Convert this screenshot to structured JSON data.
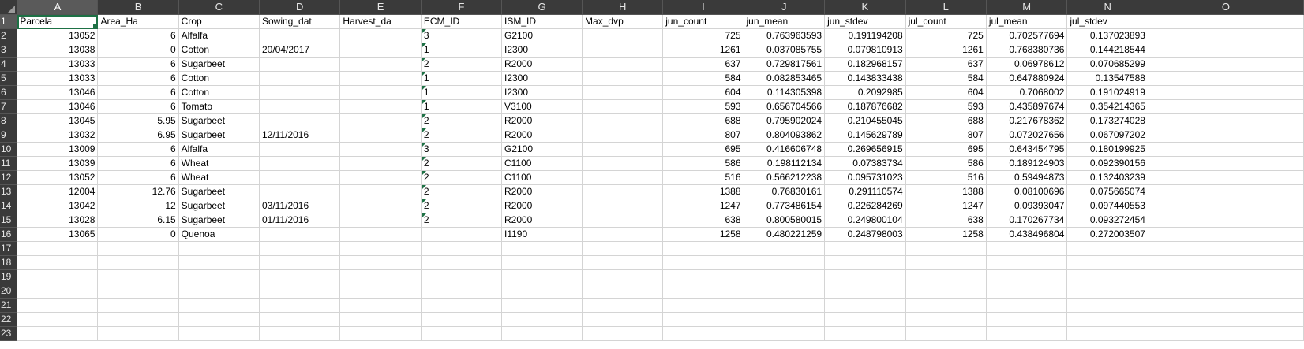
{
  "columns": [
    "A",
    "B",
    "C",
    "D",
    "E",
    "F",
    "G",
    "H",
    "I",
    "J",
    "K",
    "L",
    "M",
    "N",
    "O"
  ],
  "header": [
    "Parcela",
    "Area_Ha",
    "Crop",
    "Sowing_dat",
    "Harvest_da",
    "ECM_ID",
    "ISM_ID",
    "Max_dvp",
    "jun_count",
    "jun_mean",
    "jun_stdev",
    "jul_count",
    "jul_mean",
    "jul_stdev",
    ""
  ],
  "rows": [
    [
      "13052",
      "6",
      "Alfalfa",
      "",
      "",
      "3",
      "G2100",
      "",
      "725",
      "0.763963593",
      "0.191194208",
      "725",
      "0.702577694",
      "0.137023893",
      ""
    ],
    [
      "13038",
      "0",
      "Cotton",
      "20/04/2017",
      "",
      "1",
      "I2300",
      "",
      "1261",
      "0.037085755",
      "0.079810913",
      "1261",
      "0.768380736",
      "0.144218544",
      ""
    ],
    [
      "13033",
      "6",
      "Sugarbeet",
      "",
      "",
      "2",
      "R2000",
      "",
      "637",
      "0.729817561",
      "0.182968157",
      "637",
      "0.06978612",
      "0.070685299",
      ""
    ],
    [
      "13033",
      "6",
      "Cotton",
      "",
      "",
      "1",
      "I2300",
      "",
      "584",
      "0.082853465",
      "0.143833438",
      "584",
      "0.647880924",
      "0.13547588",
      ""
    ],
    [
      "13046",
      "6",
      "Cotton",
      "",
      "",
      "1",
      "I2300",
      "",
      "604",
      "0.114305398",
      "0.2092985",
      "604",
      "0.7068002",
      "0.191024919",
      ""
    ],
    [
      "13046",
      "6",
      "Tomato",
      "",
      "",
      "1",
      "V3100",
      "",
      "593",
      "0.656704566",
      "0.187876682",
      "593",
      "0.435897674",
      "0.354214365",
      ""
    ],
    [
      "13045",
      "5.95",
      "Sugarbeet",
      "",
      "",
      "2",
      "R2000",
      "",
      "688",
      "0.795902024",
      "0.210455045",
      "688",
      "0.217678362",
      "0.173274028",
      ""
    ],
    [
      "13032",
      "6.95",
      "Sugarbeet",
      "12/11/2016",
      "",
      "2",
      "R2000",
      "",
      "807",
      "0.804093862",
      "0.145629789",
      "807",
      "0.072027656",
      "0.067097202",
      ""
    ],
    [
      "13009",
      "6",
      "Alfalfa",
      "",
      "",
      "3",
      "G2100",
      "",
      "695",
      "0.416606748",
      "0.269656915",
      "695",
      "0.643454795",
      "0.180199925",
      ""
    ],
    [
      "13039",
      "6",
      "Wheat",
      "",
      "",
      "2",
      "C1100",
      "",
      "586",
      "0.198112134",
      "0.07383734",
      "586",
      "0.189124903",
      "0.092390156",
      ""
    ],
    [
      "13052",
      "6",
      "Wheat",
      "",
      "",
      "2",
      "C1100",
      "",
      "516",
      "0.566212238",
      "0.095731023",
      "516",
      "0.59494873",
      "0.132403239",
      ""
    ],
    [
      "12004",
      "12.76",
      "Sugarbeet",
      "",
      "",
      "2",
      "R2000",
      "",
      "1388",
      "0.76830161",
      "0.291110574",
      "1388",
      "0.08100696",
      "0.075665074",
      ""
    ],
    [
      "13042",
      "12",
      "Sugarbeet",
      "03/11/2016",
      "",
      "2",
      "R2000",
      "",
      "1247",
      "0.773486154",
      "0.226284269",
      "1247",
      "0.09393047",
      "0.097440553",
      ""
    ],
    [
      "13028",
      "6.15",
      "Sugarbeet",
      "01/11/2016",
      "",
      "2",
      "R2000",
      "",
      "638",
      "0.800580015",
      "0.249800104",
      "638",
      "0.170267734",
      "0.093272454",
      ""
    ],
    [
      "13065",
      "0",
      "Quenoa",
      "",
      "",
      "",
      "I1190",
      "",
      "1258",
      "0.480221259",
      "0.248798003",
      "1258",
      "0.438496804",
      "0.272003507",
      ""
    ]
  ],
  "row_numbers": [
    "1",
    "2",
    "3",
    "4",
    "5",
    "6",
    "7",
    "8",
    "9",
    "10",
    "11",
    "12",
    "13",
    "14",
    "15",
    "16",
    "17",
    "18",
    "19",
    "20",
    "21",
    "22",
    "23"
  ]
}
